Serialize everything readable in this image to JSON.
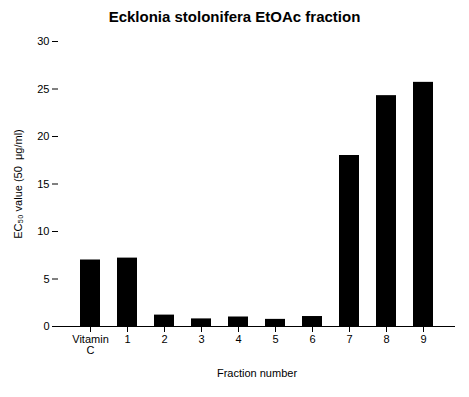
{
  "chart_data": {
    "type": "bar",
    "title": "Ecklonia stolonifera EtOAc fraction",
    "categories": [
      "Vitamin\nC",
      "1",
      "2",
      "3",
      "4",
      "5",
      "6",
      "7",
      "8",
      "9"
    ],
    "values": [
      7.0,
      7.2,
      1.2,
      0.8,
      1.0,
      0.75,
      1.05,
      18.0,
      24.3,
      25.7
    ],
    "color": "#000000",
    "xlabel": "Fraction number",
    "ylabel": "EC₅₀ value (50  μg/ml)",
    "ylim": [
      0,
      30
    ],
    "yticks": [
      0,
      5,
      10,
      15,
      20,
      25,
      30
    ],
    "grid": false
  }
}
